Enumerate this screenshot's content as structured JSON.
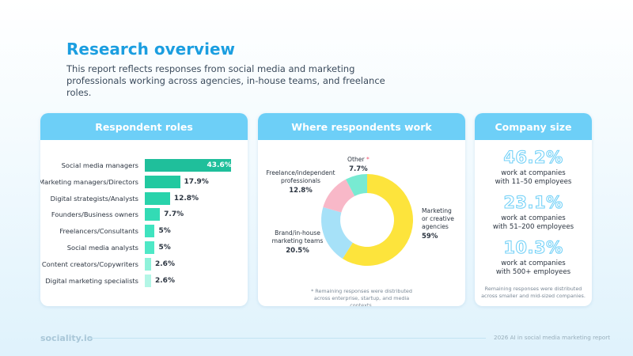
{
  "header": {
    "title": "Research overview",
    "subtitle": "This report reflects responses from social media and marketing professionals working across agencies, in-house teams, and freelance roles."
  },
  "cards": {
    "roles_title": "Respondent roles",
    "work_title": "Where respondents work",
    "size_title": "Company size"
  },
  "chart_data": [
    {
      "type": "bar",
      "orientation": "horizontal",
      "title": "Respondent roles",
      "categories": [
        "Social media managers",
        "Marketing managers/Directors",
        "Digital strategists/Analysts",
        "Founders/Business owners",
        "Freelancers/Consultants",
        "Social media analysts",
        "Content creators/Copywriters",
        "Digital marketing specialists"
      ],
      "values": [
        43.6,
        17.9,
        12.8,
        7.7,
        5,
        5,
        2.6,
        2.6
      ],
      "value_labels": [
        "43.6%",
        "17.9%",
        "12.8%",
        "7.7%",
        "5%",
        "5%",
        "2.6%",
        "2.6%"
      ],
      "colors": [
        "#1fbf9b",
        "#22c9a0",
        "#29d3ab",
        "#33dbb5",
        "#3fe3bf",
        "#4ee8c6",
        "#8ff2da",
        "#b3f6e6"
      ],
      "xlim": [
        0,
        45
      ]
    },
    {
      "type": "pie",
      "donut": true,
      "title": "Where respondents work",
      "slices": [
        {
          "label": "Marketing or creative agencies",
          "value": 59,
          "value_label": "59%",
          "color": "#fde43c"
        },
        {
          "label": "Brand/in-house marketing teams",
          "value": 20.5,
          "value_label": "20.5%",
          "color": "#a6e1f8"
        },
        {
          "label": "Freelance/independent professionals",
          "value": 12.8,
          "value_label": "12.8%",
          "color": "#f8b8c8"
        },
        {
          "label": "Other",
          "value": 7.7,
          "value_label": "7.7%",
          "color": "#78ead2"
        }
      ],
      "note": "* Remaining responses were distributed across enterprise, startup, and media contexts."
    }
  ],
  "donut_labels": {
    "agencies_line1": "Marketing",
    "agencies_line2": "or creative",
    "agencies_line3": "agencies",
    "brand_line1": "Brand/in-house",
    "brand_line2": "marketing teams",
    "freelance_line1": "Freelance/independent",
    "freelance_line2": "professionals",
    "other": "Other",
    "asterisk": "*"
  },
  "company_size": {
    "items": [
      {
        "percent": "46.2%",
        "line1": "work at companies",
        "line2": "with 11–50 employees"
      },
      {
        "percent": "23.1%",
        "line1": "work at companies",
        "line2": "with 51–200 employees"
      },
      {
        "percent": "10.3%",
        "line1": "work at companies",
        "line2": "with 500+ employees"
      }
    ],
    "note": "Remaining responses were distributed across smaller and mid-sized companies."
  },
  "footer": {
    "logo": "sociality.io",
    "report": "2026 AI in social media marketing report"
  }
}
